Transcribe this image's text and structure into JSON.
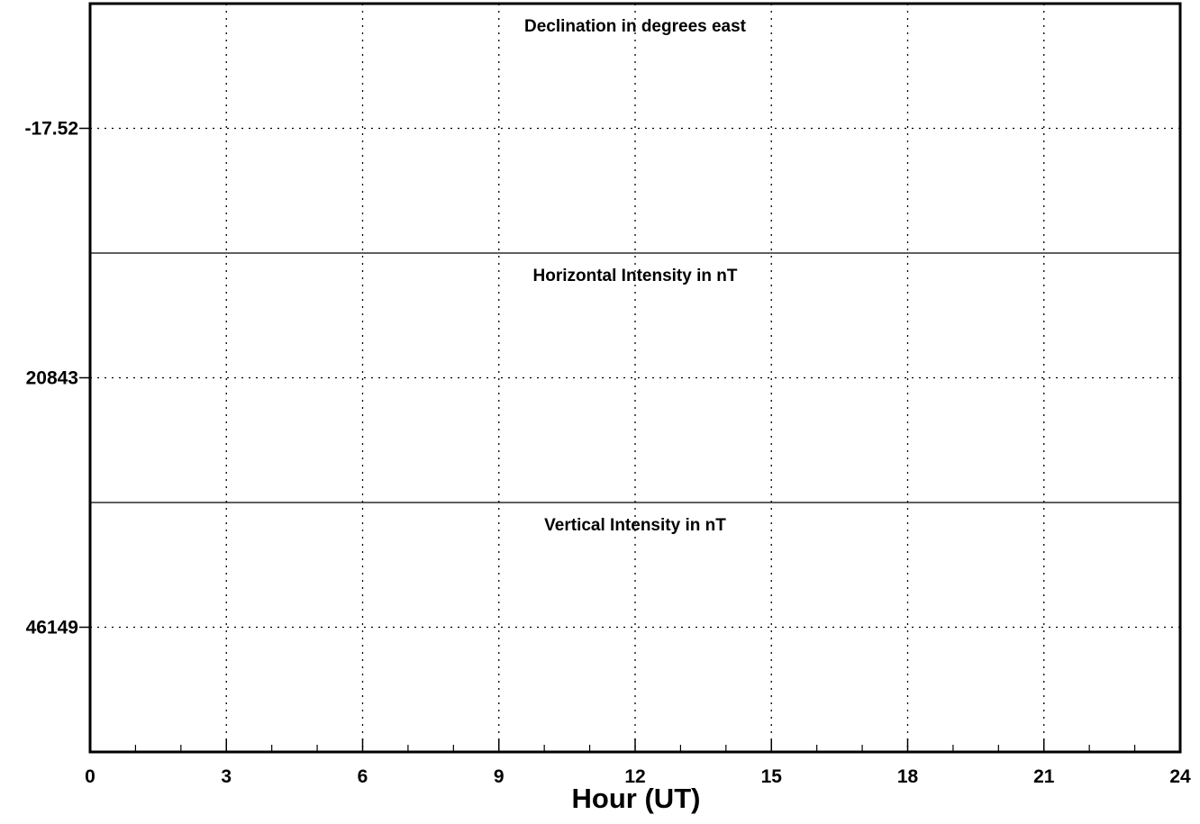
{
  "chart_data": {
    "type": "line",
    "xlabel": "Hour (UT)",
    "xlim": [
      0,
      24
    ],
    "x_ticks": [
      0,
      3,
      6,
      9,
      12,
      15,
      18,
      21,
      24
    ],
    "x_minor_step": 1,
    "grid": true,
    "panels": [
      {
        "id": "declination",
        "title": "Declination in degrees east",
        "ytick_label": "-17.52",
        "series": []
      },
      {
        "id": "horizontal",
        "title": "Horizontal Intensity in nT",
        "ytick_label": "20843",
        "series": []
      },
      {
        "id": "vertical",
        "title": "Vertical Intensity in nT",
        "ytick_label": "46149",
        "series": []
      }
    ]
  }
}
